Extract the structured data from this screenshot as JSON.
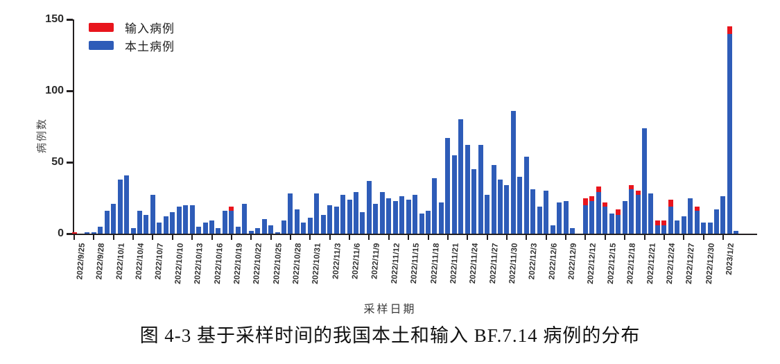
{
  "figure": {
    "caption": "图 4-3 基于采样时间的我国本土和输入 BF.7.14 病例的分布"
  },
  "chart_data": {
    "type": "bar",
    "stacked": true,
    "title": "",
    "xlabel": "采样日期",
    "ylabel": "病例数",
    "ylim": [
      0,
      150
    ],
    "yticks": [
      0,
      50,
      100,
      150
    ],
    "x_tick_every": 3,
    "grid": false,
    "legend_position": "top-left-inside",
    "axis_color": "#231f20",
    "categories": [
      "2022/9/25",
      "2022/9/26",
      "2022/9/27",
      "2022/9/28",
      "2022/9/29",
      "2022/9/30",
      "2022/10/1",
      "2022/10/2",
      "2022/10/3",
      "2022/10/4",
      "2022/10/5",
      "2022/10/6",
      "2022/10/7",
      "2022/10/8",
      "2022/10/9",
      "2022/10/10",
      "2022/10/11",
      "2022/10/12",
      "2022/10/13",
      "2022/10/14",
      "2022/10/15",
      "2022/10/16",
      "2022/10/17",
      "2022/10/18",
      "2022/10/19",
      "2022/10/20",
      "2022/10/21",
      "2022/10/22",
      "2022/10/23",
      "2022/10/24",
      "2022/10/25",
      "2022/10/26",
      "2022/10/27",
      "2022/10/28",
      "2022/10/29",
      "2022/10/30",
      "2022/10/31",
      "2022/11/1",
      "2022/11/2",
      "2022/11/3",
      "2022/11/4",
      "2022/11/5",
      "2022/11/6",
      "2022/11/7",
      "2022/11/8",
      "2022/11/9",
      "2022/11/10",
      "2022/11/11",
      "2022/11/12",
      "2022/11/13",
      "2022/11/14",
      "2022/11/15",
      "2022/11/16",
      "2022/11/17",
      "2022/11/18",
      "2022/11/19",
      "2022/11/20",
      "2022/11/21",
      "2022/11/22",
      "2022/11/23",
      "2022/11/24",
      "2022/11/25",
      "2022/11/26",
      "2022/11/27",
      "2022/11/28",
      "2022/11/29",
      "2022/11/30",
      "2022/12/1",
      "2022/12/2",
      "2022/12/3",
      "2022/12/4",
      "2022/12/5",
      "2022/12/6",
      "2022/12/7",
      "2022/12/8",
      "2022/12/9",
      "2022/12/10",
      "2022/12/11",
      "2022/12/12",
      "2022/12/13",
      "2022/12/14",
      "2022/12/15",
      "2022/12/16",
      "2022/12/17",
      "2022/12/18",
      "2022/12/19",
      "2022/12/20",
      "2022/12/21",
      "2022/12/22",
      "2022/12/23",
      "2022/12/24",
      "2022/12/25",
      "2022/12/26",
      "2022/12/27",
      "2022/12/28",
      "2022/12/29",
      "2022/12/30",
      "2022/12/31",
      "2023/1/1",
      "2023/1/2",
      "2023/1/3",
      "2023/1/4"
    ],
    "series": [
      {
        "name": "输入病例",
        "color": "#e8151d",
        "values": [
          1,
          0,
          0,
          0,
          0,
          0,
          0,
          0,
          0,
          0,
          0,
          0,
          0,
          0,
          0,
          0,
          0,
          0,
          0,
          0,
          0,
          0,
          0,
          0,
          3,
          0,
          0,
          0,
          0,
          0,
          0,
          0,
          0,
          0,
          0,
          0,
          0,
          0,
          0,
          0,
          0,
          0,
          0,
          0,
          0,
          0,
          0,
          0,
          0,
          0,
          0,
          0,
          0,
          0,
          0,
          0,
          0,
          0,
          0,
          0,
          0,
          0,
          0,
          0,
          0,
          0,
          0,
          0,
          0,
          0,
          0,
          0,
          0,
          0,
          0,
          0,
          0,
          0,
          5,
          3,
          4,
          3,
          0,
          4,
          0,
          3,
          3,
          0,
          0,
          3,
          3,
          5,
          0,
          0,
          0,
          3,
          0,
          0,
          0,
          0,
          5,
          0
        ]
      },
      {
        "name": "本土病例",
        "color": "#2e5cb8",
        "values": [
          0,
          0,
          1,
          1,
          5,
          16,
          21,
          38,
          41,
          4,
          16,
          13,
          27,
          8,
          12,
          15,
          19,
          20,
          20,
          5,
          8,
          9,
          4,
          16,
          16,
          5,
          21,
          2,
          4,
          10,
          6,
          1,
          9,
          28,
          17,
          8,
          11,
          28,
          13,
          20,
          19,
          27,
          24,
          29,
          15,
          37,
          21,
          29,
          25,
          23,
          26,
          24,
          27,
          14,
          16,
          39,
          22,
          67,
          55,
          80,
          62,
          45,
          62,
          27,
          48,
          38,
          34,
          86,
          40,
          54,
          31,
          19,
          30,
          6,
          22,
          23,
          4,
          0,
          20,
          23,
          29,
          19,
          14,
          13,
          23,
          31,
          27,
          74,
          28,
          6,
          6,
          19,
          9,
          12,
          25,
          16,
          8,
          8,
          17,
          26,
          140,
          2
        ]
      }
    ]
  }
}
